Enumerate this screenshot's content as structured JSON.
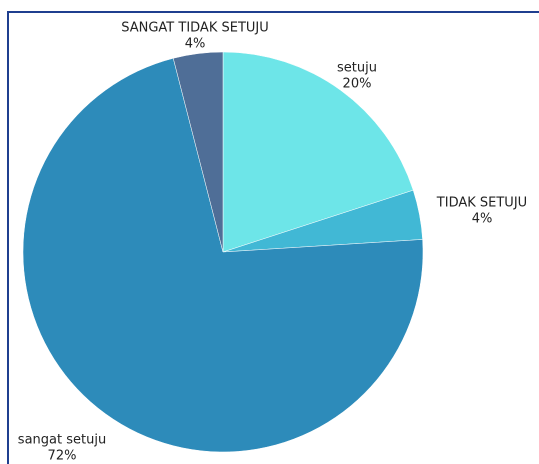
{
  "chart_data": {
    "type": "pie",
    "categories": [
      "setuju",
      "TIDAK SETUJU",
      "sangat setuju",
      "SANGAT TIDAK SETUJU"
    ],
    "values": [
      20,
      4,
      72,
      4
    ],
    "value_labels": [
      "20%",
      "4%",
      "72%",
      "4%"
    ],
    "colors": [
      "#6de5e8",
      "#41b8d5",
      "#2d8bba",
      "#4f6e97"
    ]
  }
}
